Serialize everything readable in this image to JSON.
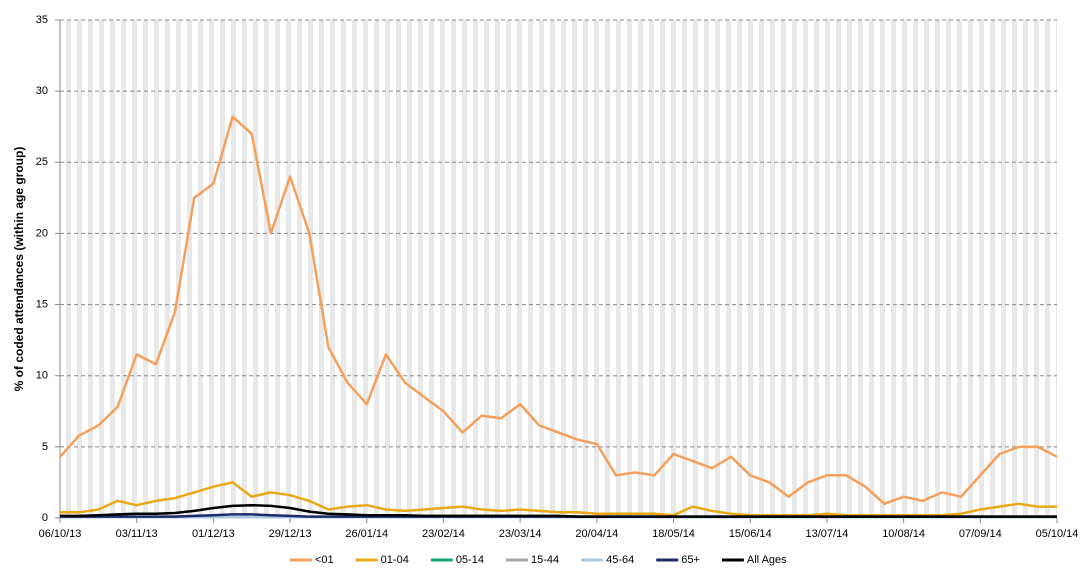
{
  "chart_data": {
    "type": "line",
    "y_label": "% of coded attendances  (within age group)",
    "x": [
      "06/10/13",
      "13/10/13",
      "20/10/13",
      "27/10/13",
      "03/11/13",
      "10/11/13",
      "17/11/13",
      "24/11/13",
      "01/12/13",
      "08/12/13",
      "15/12/13",
      "22/12/13",
      "29/12/13",
      "05/01/14",
      "12/01/14",
      "19/01/14",
      "26/01/14",
      "02/02/14",
      "09/02/14",
      "16/02/14",
      "23/02/14",
      "02/03/14",
      "09/03/14",
      "16/03/14",
      "23/03/14",
      "30/03/14",
      "06/04/14",
      "13/04/14",
      "20/04/14",
      "27/04/14",
      "04/05/14",
      "11/05/14",
      "18/05/14",
      "25/05/14",
      "01/06/14",
      "08/06/14",
      "15/06/14",
      "22/06/14",
      "29/06/14",
      "06/07/14",
      "13/07/14",
      "20/07/14",
      "27/07/14",
      "03/08/14",
      "10/08/14",
      "17/08/14",
      "24/08/14",
      "31/08/14",
      "07/09/14",
      "14/09/14",
      "21/09/14",
      "28/09/14",
      "05/10/14"
    ],
    "series": [
      {
        "name": "<01",
        "color": "#f5a05a",
        "values": [
          4.3,
          5.8,
          6.5,
          7.8,
          11.5,
          10.8,
          14.5,
          22.5,
          23.5,
          28.2,
          27.0,
          20.0,
          24.0,
          20.0,
          12.0,
          9.5,
          8.0,
          11.5,
          9.5,
          8.5,
          7.5,
          6.0,
          7.2,
          7.0,
          8.0,
          6.5,
          6.0,
          5.5,
          5.2,
          3.0,
          3.2,
          3.0,
          4.5,
          4.0,
          3.5,
          4.3,
          3.0,
          2.5,
          1.5,
          2.5,
          3.0,
          3.0,
          2.2,
          1.0,
          1.5,
          1.2,
          1.8,
          1.5,
          3.0,
          4.5,
          5.0,
          5.0,
          4.3
        ]
      },
      {
        "name": "01-04",
        "color": "#e8a817",
        "values": [
          0.4,
          0.4,
          0.6,
          1.2,
          0.9,
          1.2,
          1.4,
          1.8,
          2.2,
          2.5,
          1.5,
          1.8,
          1.6,
          1.2,
          0.6,
          0.8,
          0.9,
          0.6,
          0.5,
          0.6,
          0.7,
          0.8,
          0.6,
          0.5,
          0.6,
          0.5,
          0.4,
          0.4,
          0.3,
          0.3,
          0.3,
          0.3,
          0.2,
          0.8,
          0.5,
          0.3,
          0.2,
          0.2,
          0.2,
          0.2,
          0.3,
          0.2,
          0.2,
          0.2,
          0.2,
          0.2,
          0.2,
          0.3,
          0.6,
          0.8,
          1.0,
          0.8,
          0.8
        ]
      },
      {
        "name": "05-14",
        "color": "#1aa37a",
        "values": [
          0.05,
          0.05,
          0.05,
          0.05,
          0.05,
          0.05,
          0.05,
          0.05,
          0.05,
          0.05,
          0.05,
          0.05,
          0.05,
          0.05,
          0.05,
          0.05,
          0.05,
          0.05,
          0.05,
          0.05,
          0.05,
          0.05,
          0.05,
          0.05,
          0.05,
          0.05,
          0.05,
          0.05,
          0.05,
          0.05,
          0.05,
          0.05,
          0.05,
          0.05,
          0.05,
          0.05,
          0.05,
          0.05,
          0.05,
          0.05,
          0.05,
          0.05,
          0.05,
          0.05,
          0.05,
          0.05,
          0.05,
          0.05,
          0.05,
          0.05,
          0.05,
          0.05,
          0.05
        ]
      },
      {
        "name": "15-44",
        "color": "#a6a6a6",
        "values": [
          0.05,
          0.05,
          0.05,
          0.05,
          0.05,
          0.05,
          0.05,
          0.05,
          0.05,
          0.05,
          0.05,
          0.05,
          0.05,
          0.05,
          0.05,
          0.05,
          0.05,
          0.05,
          0.05,
          0.05,
          0.05,
          0.05,
          0.05,
          0.05,
          0.05,
          0.05,
          0.05,
          0.05,
          0.05,
          0.05,
          0.05,
          0.05,
          0.05,
          0.05,
          0.05,
          0.05,
          0.05,
          0.05,
          0.05,
          0.05,
          0.05,
          0.05,
          0.05,
          0.05,
          0.05,
          0.05,
          0.05,
          0.05,
          0.05,
          0.05,
          0.05,
          0.05,
          0.05
        ]
      },
      {
        "name": "45-64",
        "color": "#a9c8e0",
        "values": [
          0.05,
          0.05,
          0.05,
          0.05,
          0.05,
          0.05,
          0.05,
          0.05,
          0.05,
          0.05,
          0.05,
          0.05,
          0.05,
          0.05,
          0.05,
          0.05,
          0.05,
          0.05,
          0.05,
          0.05,
          0.05,
          0.05,
          0.05,
          0.05,
          0.05,
          0.05,
          0.05,
          0.05,
          0.05,
          0.05,
          0.05,
          0.05,
          0.05,
          0.05,
          0.05,
          0.05,
          0.05,
          0.05,
          0.05,
          0.05,
          0.05,
          0.05,
          0.05,
          0.05,
          0.05,
          0.05,
          0.05,
          0.05,
          0.05,
          0.05,
          0.05,
          0.05,
          0.05
        ]
      },
      {
        "name": "65+",
        "color": "#1f2a6b",
        "values": [
          0.1,
          0.1,
          0.1,
          0.1,
          0.1,
          0.1,
          0.1,
          0.15,
          0.2,
          0.25,
          0.25,
          0.2,
          0.15,
          0.1,
          0.1,
          0.1,
          0.1,
          0.1,
          0.1,
          0.1,
          0.1,
          0.1,
          0.1,
          0.1,
          0.1,
          0.1,
          0.1,
          0.1,
          0.1,
          0.1,
          0.1,
          0.1,
          0.1,
          0.1,
          0.1,
          0.1,
          0.1,
          0.1,
          0.1,
          0.1,
          0.1,
          0.1,
          0.1,
          0.1,
          0.1,
          0.1,
          0.1,
          0.1,
          0.1,
          0.1,
          0.1,
          0.1,
          0.1
        ]
      },
      {
        "name": "All Ages",
        "color": "#000000",
        "values": [
          0.15,
          0.15,
          0.2,
          0.25,
          0.3,
          0.3,
          0.35,
          0.5,
          0.7,
          0.85,
          0.9,
          0.85,
          0.7,
          0.45,
          0.3,
          0.25,
          0.2,
          0.2,
          0.2,
          0.15,
          0.15,
          0.15,
          0.15,
          0.15,
          0.15,
          0.15,
          0.15,
          0.1,
          0.1,
          0.1,
          0.1,
          0.1,
          0.1,
          0.1,
          0.1,
          0.1,
          0.1,
          0.1,
          0.1,
          0.1,
          0.1,
          0.1,
          0.1,
          0.1,
          0.1,
          0.1,
          0.1,
          0.1,
          0.1,
          0.1,
          0.1,
          0.1,
          0.1
        ]
      }
    ],
    "xlim": [
      "06/10/13",
      "05/10/14"
    ],
    "xticks": [
      "06/10/13",
      "03/11/13",
      "01/12/13",
      "29/12/13",
      "26/01/14",
      "23/02/14",
      "23/03/14",
      "20/04/14",
      "18/05/14",
      "15/06/14",
      "13/07/14",
      "10/08/14",
      "07/09/14",
      "05/10/14"
    ],
    "ylim": [
      0,
      35
    ],
    "yticks": [
      0,
      5,
      10,
      15,
      20,
      25,
      30,
      35
    ],
    "grid": true
  }
}
